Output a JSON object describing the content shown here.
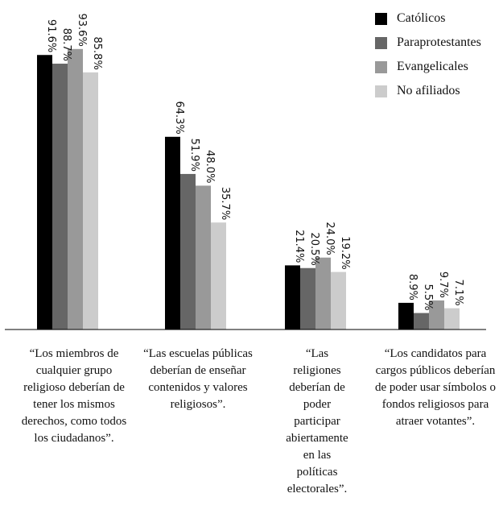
{
  "chart_data": {
    "type": "bar",
    "categories": [
      "“Los miembros de cualquier grupo religioso deberían de tener los mismos derechos, como todos los ciudadanos”.",
      "“Las escuelas públicas deberían de enseñar contenidos y valores religiosos”.",
      "“Las religiones deberían de poder participar abiertamente en las políticas electorales”.",
      "“Los candidatos para cargos públicos deberían de poder usar símbolos o fondos religiosos para atraer votantes”."
    ],
    "series": [
      {
        "name": "Católicos",
        "color": "#000000",
        "values": [
          91.6,
          64.3,
          21.4,
          8.9
        ],
        "labels": [
          "91.6%",
          "64.3%",
          "21.4%",
          "8.9%"
        ]
      },
      {
        "name": "Paraprotestantes",
        "color": "#666666",
        "values": [
          88.7,
          51.9,
          20.5,
          5.5
        ],
        "labels": [
          "88.7%",
          "51.9%",
          "20.5%",
          "5.5%"
        ]
      },
      {
        "name": "Evangelicales",
        "color": "#999999",
        "values": [
          93.6,
          48.0,
          24.0,
          9.7
        ],
        "labels": [
          "93.6%",
          "48.0%",
          "24.0%",
          "9.7%"
        ]
      },
      {
        "name": "No afiliados",
        "color": "#cccccc",
        "values": [
          85.8,
          35.7,
          19.2,
          7.1
        ],
        "labels": [
          "85.8%",
          "35.7%",
          "19.2%",
          "7.1%"
        ]
      }
    ],
    "ylim": [
      0,
      100
    ],
    "legend_position": "top-right",
    "grid": false
  }
}
